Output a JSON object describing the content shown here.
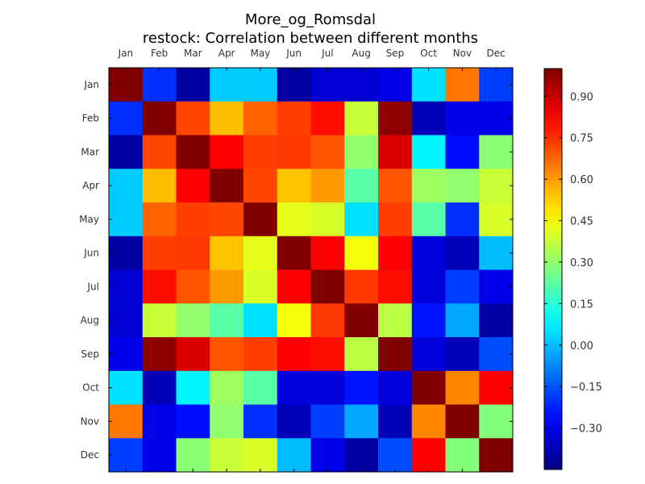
{
  "chart_data": {
    "type": "heatmap",
    "title": "More_og_Romsdal",
    "subtitle": "restock: Correlation between different months",
    "x_labels": [
      "Jan",
      "Feb",
      "Mar",
      "Apr",
      "May",
      "Jun",
      "Jul",
      "Aug",
      "Sep",
      "Oct",
      "Nov",
      "Dec"
    ],
    "y_labels": [
      "Jan",
      "Feb",
      "Mar",
      "Apr",
      "May",
      "Jun",
      "Jul",
      "Aug",
      "Sep",
      "Oct",
      "Nov",
      "Dec"
    ],
    "values": [
      [
        1.0,
        -0.2,
        -0.4,
        0.02,
        0.02,
        -0.4,
        -0.33,
        -0.33,
        -0.3,
        0.05,
        0.65,
        -0.18
      ],
      [
        -0.2,
        1.0,
        0.72,
        0.55,
        0.68,
        0.73,
        0.8,
        0.38,
        0.98,
        -0.37,
        -0.3,
        -0.3
      ],
      [
        -0.4,
        0.72,
        1.0,
        0.82,
        0.73,
        0.74,
        0.7,
        0.3,
        0.87,
        0.08,
        -0.25,
        0.29
      ],
      [
        0.02,
        0.55,
        0.82,
        1.0,
        0.72,
        0.54,
        0.6,
        0.22,
        0.7,
        0.32,
        0.3,
        0.38
      ],
      [
        0.02,
        0.68,
        0.73,
        0.72,
        1.0,
        0.42,
        0.4,
        0.05,
        0.73,
        0.22,
        -0.2,
        0.4
      ],
      [
        -0.4,
        0.73,
        0.74,
        0.54,
        0.42,
        1.0,
        0.82,
        0.44,
        0.82,
        -0.32,
        -0.37,
        0.0
      ],
      [
        -0.33,
        0.8,
        0.7,
        0.6,
        0.4,
        0.82,
        1.0,
        0.74,
        0.8,
        -0.32,
        -0.18,
        -0.3
      ],
      [
        -0.33,
        0.38,
        0.3,
        0.22,
        0.05,
        0.44,
        0.74,
        1.0,
        0.36,
        -0.24,
        -0.03,
        -0.4
      ],
      [
        -0.3,
        0.98,
        0.87,
        0.7,
        0.73,
        0.82,
        0.8,
        0.36,
        1.0,
        -0.32,
        -0.37,
        -0.16
      ],
      [
        0.05,
        -0.37,
        0.08,
        0.32,
        0.22,
        -0.32,
        -0.32,
        -0.24,
        -0.32,
        1.0,
        0.63,
        0.82
      ],
      [
        0.65,
        -0.3,
        -0.25,
        0.3,
        -0.2,
        -0.37,
        -0.18,
        -0.03,
        -0.37,
        0.63,
        1.0,
        0.28
      ],
      [
        -0.18,
        -0.3,
        0.29,
        0.38,
        0.4,
        0.0,
        -0.3,
        -0.4,
        -0.16,
        0.82,
        0.28,
        1.0
      ]
    ],
    "colorbar": {
      "colormap": "jet",
      "range": [
        -0.45,
        1.0
      ],
      "ticks": [
        0.9,
        0.75,
        0.6,
        0.45,
        0.3,
        0.15,
        0.0,
        -0.15,
        -0.3
      ],
      "tick_labels": [
        "0.90",
        "0.75",
        "0.60",
        "0.45",
        "0.30",
        "0.15",
        "0.00",
        "−0.15",
        "−0.30"
      ]
    }
  }
}
